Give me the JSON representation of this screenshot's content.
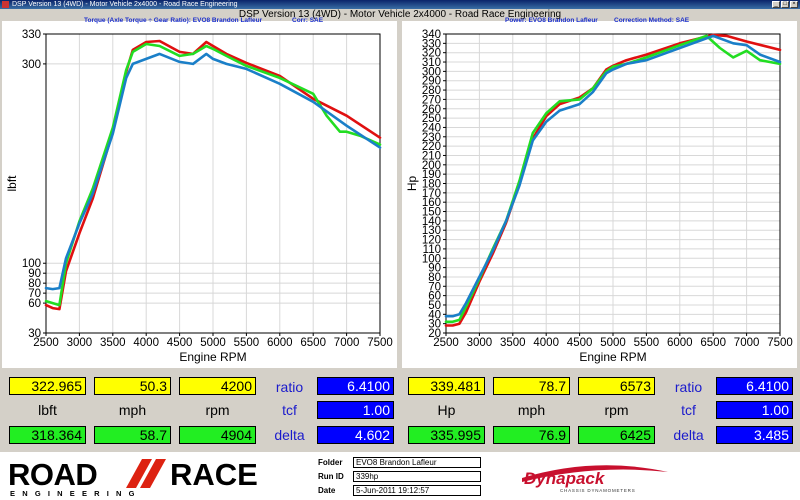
{
  "window": {
    "title": "DSP Version 13 (4WD) - Motor Vehicle 2x4000 - Road Race Engineering",
    "app_title": "DSP Version 13 (4WD) - Motor Vehicle 2x4000 - Road Race Engineering"
  },
  "colors": {
    "red": "#e01010",
    "green": "#22dd22",
    "blue": "#1a7fc8"
  },
  "chart_data": [
    {
      "type": "line",
      "title_parts": [
        "Torque (Axle Torque ÷ Gear Ratio): EVO8 Brandon Lafleur",
        "Corr: SAE"
      ],
      "xlabel": "Engine RPM",
      "ylabel": "lbft",
      "xlim": [
        2500,
        7500
      ],
      "ylim": [
        30,
        330
      ],
      "xticks": [
        2500,
        3000,
        3500,
        4000,
        4500,
        5000,
        5500,
        6000,
        6500,
        7000,
        7500
      ],
      "yticks": [
        30,
        60,
        70,
        80,
        90,
        100,
        300,
        330
      ],
      "grid": true,
      "series": [
        {
          "color": "red",
          "x": [
            2500,
            2600,
            2700,
            2800,
            3000,
            3200,
            3500,
            3700,
            3800,
            4000,
            4200,
            4500,
            4700,
            4900,
            5000,
            5200,
            5500,
            6000,
            6500,
            7000,
            7500
          ],
          "y": [
            58,
            55,
            54,
            92,
            130,
            165,
            232,
            292,
            314,
            322,
            323,
            312,
            310,
            322,
            318,
            310,
            301,
            288,
            265,
            248,
            226
          ]
        },
        {
          "color": "green",
          "x": [
            2500,
            2600,
            2700,
            2800,
            3000,
            3200,
            3500,
            3700,
            3800,
            4000,
            4200,
            4500,
            4700,
            4900,
            5000,
            5200,
            5500,
            6000,
            6500,
            6700,
            6900,
            7000,
            7200,
            7500
          ],
          "y": [
            62,
            60,
            58,
            100,
            142,
            175,
            236,
            294,
            312,
            320,
            318,
            308,
            310,
            318,
            315,
            308,
            298,
            286,
            270,
            248,
            232,
            232,
            228,
            219
          ]
        },
        {
          "color": "blue",
          "x": [
            2500,
            2600,
            2700,
            2800,
            3000,
            3200,
            3500,
            3700,
            3800,
            4000,
            4200,
            4500,
            4700,
            4900,
            5000,
            5200,
            5500,
            6000,
            6500,
            7000,
            7500
          ],
          "y": [
            75,
            74,
            75,
            105,
            140,
            170,
            230,
            286,
            300,
            305,
            310,
            302,
            300,
            310,
            305,
            300,
            295,
            280,
            262,
            238,
            216
          ]
        }
      ]
    },
    {
      "type": "line",
      "title_parts": [
        "Power: EVO8 Brandon Lafleur",
        "Correction Method: SAE"
      ],
      "xlabel": "Engine RPM",
      "ylabel": "Hp",
      "xlim": [
        2500,
        7500
      ],
      "ylim": [
        20,
        340
      ],
      "xticks": [
        2500,
        3000,
        3500,
        4000,
        4500,
        5000,
        5500,
        6000,
        6500,
        7000,
        7500
      ],
      "yticks": [
        20,
        30,
        40,
        50,
        60,
        70,
        80,
        90,
        100,
        110,
        120,
        130,
        140,
        150,
        160,
        170,
        180,
        190,
        200,
        210,
        220,
        230,
        240,
        250,
        260,
        270,
        280,
        290,
        300,
        310,
        320,
        330,
        340
      ],
      "grid": true,
      "series": [
        {
          "color": "red",
          "x": [
            2500,
            2600,
            2700,
            2800,
            3000,
            3200,
            3400,
            3600,
            3800,
            4000,
            4200,
            4500,
            4700,
            4900,
            5000,
            5200,
            5500,
            6000,
            6500,
            6700,
            7000,
            7500
          ],
          "y": [
            28,
            28,
            30,
            42,
            75,
            105,
            138,
            180,
            228,
            252,
            265,
            272,
            282,
            302,
            306,
            312,
            318,
            330,
            339,
            338,
            332,
            323
          ]
        },
        {
          "color": "green",
          "x": [
            2500,
            2600,
            2700,
            2800,
            3000,
            3200,
            3400,
            3600,
            3800,
            4000,
            4200,
            4500,
            4700,
            4900,
            5000,
            5200,
            5500,
            6000,
            6400,
            6600,
            6800,
            7000,
            7200,
            7500
          ],
          "y": [
            32,
            32,
            34,
            48,
            78,
            110,
            140,
            183,
            234,
            255,
            268,
            270,
            282,
            300,
            305,
            308,
            315,
            328,
            338,
            325,
            315,
            322,
            312,
            308
          ]
        },
        {
          "color": "blue",
          "x": [
            2500,
            2600,
            2700,
            2800,
            3000,
            3200,
            3400,
            3600,
            3800,
            4000,
            4200,
            4500,
            4700,
            4900,
            5000,
            5200,
            5500,
            6000,
            6500,
            6800,
            7000,
            7200,
            7500
          ],
          "y": [
            38,
            38,
            40,
            52,
            80,
            108,
            140,
            178,
            226,
            246,
            258,
            265,
            278,
            298,
            302,
            308,
            312,
            325,
            338,
            330,
            328,
            318,
            310
          ]
        }
      ]
    }
  ],
  "readout_left": {
    "top": [
      "322.965",
      "50.3",
      "4200"
    ],
    "labels": [
      "lbft",
      "mph",
      "rpm"
    ],
    "bottom": [
      "318.364",
      "58.7",
      "4904"
    ],
    "right_labels": [
      "ratio",
      "tcf",
      "delta"
    ],
    "right_values": [
      "6.4100",
      "1.00",
      "4.602"
    ]
  },
  "readout_right": {
    "top": [
      "339.481",
      "78.7",
      "6573"
    ],
    "labels": [
      "Hp",
      "mph",
      "rpm"
    ],
    "bottom": [
      "335.995",
      "76.9",
      "6425"
    ],
    "right_labels": [
      "ratio",
      "tcf",
      "delta"
    ],
    "right_values": [
      "6.4100",
      "1.00",
      "3.485"
    ]
  },
  "footer": {
    "logo_text": [
      "ROAD",
      "RACE",
      "ENGINEERING"
    ],
    "folder_label": "Folder",
    "folder_value": "EVO8 Brandon Lafleur",
    "runid_label": "Run ID",
    "runid_value": "339hp",
    "date_label": "Date",
    "date_value": "5-Jun-2011 19:12:57",
    "brand": "Dynapack",
    "brand_sub": "CHASSIS DYNAMOMETERS"
  }
}
